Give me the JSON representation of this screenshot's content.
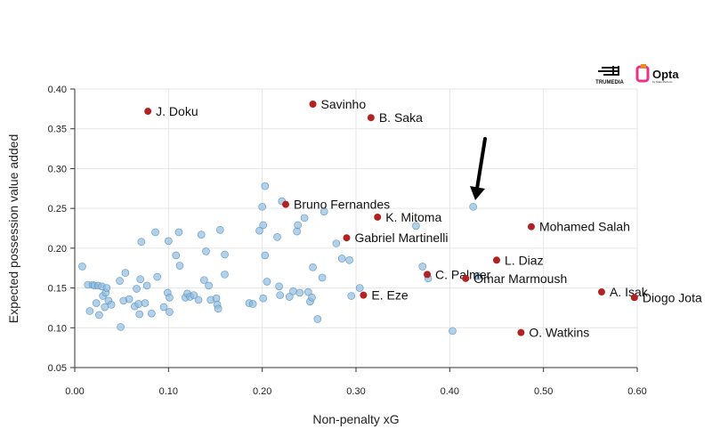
{
  "logos": {
    "trumedia": "TRUMEDIA",
    "opta": "Opta",
    "opta_sub": "by Stats Perform"
  },
  "colors": {
    "background": "#88b8dc",
    "highlight": "#b22222",
    "grid": "#e6e6e6",
    "axis": "#333333",
    "opta_accent": "#e8328a"
  },
  "chart_data": {
    "type": "scatter",
    "xlabel": "Non-penalty xG",
    "ylabel": "Expected possession value added",
    "xlim": [
      0,
      0.6
    ],
    "ylim": [
      0.05,
      0.4
    ],
    "x_ticks": [
      "0.00",
      "0.10",
      "0.20",
      "0.30",
      "0.40",
      "0.50",
      "0.60"
    ],
    "y_ticks": [
      "0.05",
      "0.10",
      "0.15",
      "0.20",
      "0.25",
      "0.30",
      "0.35",
      "0.40"
    ],
    "grid": true,
    "annotation": "arrow pointing to a point near (0.425, 0.252)",
    "highlighted": [
      {
        "name": "J. Doku",
        "x": 0.078,
        "y": 0.372
      },
      {
        "name": "Savinho",
        "x": 0.254,
        "y": 0.381
      },
      {
        "name": "B. Saka",
        "x": 0.316,
        "y": 0.364
      },
      {
        "name": "Bruno Fernandes",
        "x": 0.225,
        "y": 0.255
      },
      {
        "name": "K. Mitoma",
        "x": 0.323,
        "y": 0.239
      },
      {
        "name": "Gabriel Martinelli",
        "x": 0.29,
        "y": 0.213
      },
      {
        "name": "Mohamed Salah",
        "x": 0.487,
        "y": 0.227
      },
      {
        "name": "L. Diaz",
        "x": 0.45,
        "y": 0.185
      },
      {
        "name": "C. Palmer",
        "x": 0.376,
        "y": 0.167
      },
      {
        "name": "Omar Marmoush",
        "x": 0.417,
        "y": 0.162
      },
      {
        "name": "A. Isak",
        "x": 0.562,
        "y": 0.145
      },
      {
        "name": "Diogo Jota",
        "x": 0.597,
        "y": 0.138
      },
      {
        "name": "E. Eze",
        "x": 0.308,
        "y": 0.141
      },
      {
        "name": "O. Watkins",
        "x": 0.476,
        "y": 0.094
      }
    ],
    "others": [
      [
        0.008,
        0.177
      ],
      [
        0.014,
        0.154
      ],
      [
        0.016,
        0.121
      ],
      [
        0.019,
        0.154
      ],
      [
        0.021,
        0.153
      ],
      [
        0.023,
        0.131
      ],
      [
        0.025,
        0.153
      ],
      [
        0.026,
        0.116
      ],
      [
        0.029,
        0.152
      ],
      [
        0.03,
        0.14
      ],
      [
        0.032,
        0.126
      ],
      [
        0.033,
        0.144
      ],
      [
        0.034,
        0.15
      ],
      [
        0.036,
        0.134
      ],
      [
        0.039,
        0.129
      ],
      [
        0.048,
        0.159
      ],
      [
        0.049,
        0.101
      ],
      [
        0.052,
        0.134
      ],
      [
        0.054,
        0.169
      ],
      [
        0.058,
        0.136
      ],
      [
        0.064,
        0.127
      ],
      [
        0.066,
        0.149
      ],
      [
        0.068,
        0.13
      ],
      [
        0.069,
        0.117
      ],
      [
        0.07,
        0.161
      ],
      [
        0.071,
        0.208
      ],
      [
        0.075,
        0.131
      ],
      [
        0.077,
        0.153
      ],
      [
        0.082,
        0.118
      ],
      [
        0.086,
        0.22
      ],
      [
        0.088,
        0.164
      ],
      [
        0.095,
        0.126
      ],
      [
        0.099,
        0.144
      ],
      [
        0.1,
        0.209
      ],
      [
        0.101,
        0.138
      ],
      [
        0.101,
        0.12
      ],
      [
        0.108,
        0.191
      ],
      [
        0.111,
        0.22
      ],
      [
        0.112,
        0.178
      ],
      [
        0.118,
        0.138
      ],
      [
        0.12,
        0.143
      ],
      [
        0.123,
        0.139
      ],
      [
        0.127,
        0.141
      ],
      [
        0.132,
        0.135
      ],
      [
        0.135,
        0.217
      ],
      [
        0.138,
        0.16
      ],
      [
        0.14,
        0.196
      ],
      [
        0.143,
        0.153
      ],
      [
        0.145,
        0.135
      ],
      [
        0.151,
        0.137
      ],
      [
        0.152,
        0.129
      ],
      [
        0.153,
        0.124
      ],
      [
        0.155,
        0.223
      ],
      [
        0.16,
        0.192
      ],
      [
        0.16,
        0.167
      ],
      [
        0.186,
        0.131
      ],
      [
        0.19,
        0.13
      ],
      [
        0.197,
        0.222
      ],
      [
        0.2,
        0.252
      ],
      [
        0.201,
        0.137
      ],
      [
        0.201,
        0.229
      ],
      [
        0.203,
        0.278
      ],
      [
        0.203,
        0.191
      ],
      [
        0.205,
        0.158
      ],
      [
        0.216,
        0.214
      ],
      [
        0.218,
        0.152
      ],
      [
        0.219,
        0.141
      ],
      [
        0.221,
        0.259
      ],
      [
        0.229,
        0.139
      ],
      [
        0.233,
        0.146
      ],
      [
        0.237,
        0.221
      ],
      [
        0.238,
        0.229
      ],
      [
        0.24,
        0.144
      ],
      [
        0.245,
        0.238
      ],
      [
        0.249,
        0.145
      ],
      [
        0.251,
        0.133
      ],
      [
        0.253,
        0.138
      ],
      [
        0.254,
        0.176
      ],
      [
        0.259,
        0.111
      ],
      [
        0.264,
        0.163
      ],
      [
        0.266,
        0.246
      ],
      [
        0.279,
        0.206
      ],
      [
        0.285,
        0.187
      ],
      [
        0.293,
        0.185
      ],
      [
        0.295,
        0.14
      ],
      [
        0.304,
        0.15
      ],
      [
        0.364,
        0.228
      ],
      [
        0.371,
        0.177
      ],
      [
        0.377,
        0.162
      ],
      [
        0.403,
        0.096
      ],
      [
        0.425,
        0.252
      ],
      [
        0.43,
        0.165
      ]
    ]
  }
}
